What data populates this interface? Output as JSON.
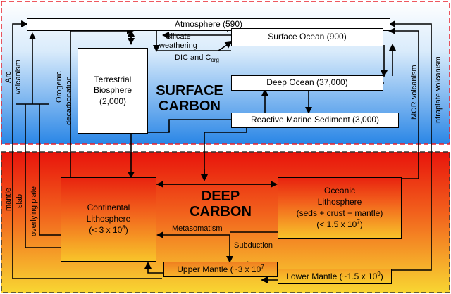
{
  "zones": {
    "surface": {
      "title_line1": "SURFACE",
      "title_line2": "CARBON"
    },
    "deep": {
      "title_line1": "DEEP",
      "title_line2": "CARBON"
    }
  },
  "boxes": {
    "atmosphere": "Atmosphere (590)",
    "surface_ocean": "Surface Ocean (900)",
    "deep_ocean": "Deep Ocean (37,000)",
    "terrestrial_biosphere": {
      "line1": "Terrestrial",
      "line2": "Biosphere",
      "line3": "(2,000)"
    },
    "reactive_marine_sediment": "Reactive Marine Sediment (3,000)",
    "continental_lithosphere": {
      "line1": "Continental",
      "line2": "Lithosphere",
      "line3_base": "(< 3 x 10",
      "line3_exp": "8",
      "line3_end": ")"
    },
    "oceanic_lithosphere": {
      "line1": "Oceanic",
      "line2": "Lithosphere",
      "line3": "(seds + crust + mantle)",
      "line4_base": "(< 1.5 x 10",
      "line4_exp": "7",
      "line4_end": ")"
    },
    "upper_mantle": {
      "base": "Upper Mantle (~3 x 10",
      "exp": "7"
    },
    "lower_mantle": {
      "base": "Lower Mantle (~1.5 x 10",
      "exp": "9",
      "end": ")"
    }
  },
  "labels": {
    "silicate_weathering_1": "Silicate",
    "silicate_weathering_2": "weathering",
    "dic_corg_base": "DIC and C",
    "dic_corg_sub": "org",
    "metasomatism": "Metasomatism",
    "subduction": "Subduction",
    "arc_volcanism_1": "Arc",
    "arc_volcanism_2": "volcanism",
    "orogenic_decarbonation_1": "Orogenic",
    "orogenic_decarbonation_2": "decarbonation",
    "mor_volcanism": "MOR volcanism",
    "intraplate_volcanism": "Intraplate volcanism",
    "mantle": "mantle",
    "slab": "slab",
    "overlying_plate": "overlying plate"
  },
  "colors": {
    "surface_gradient_top": "#ffffff",
    "surface_gradient_bottom": "#2a86e6",
    "deep_gradient_top": "#e8140c",
    "deep_gradient_bottom": "#f8d632",
    "dashed_border": "#e8202a"
  }
}
